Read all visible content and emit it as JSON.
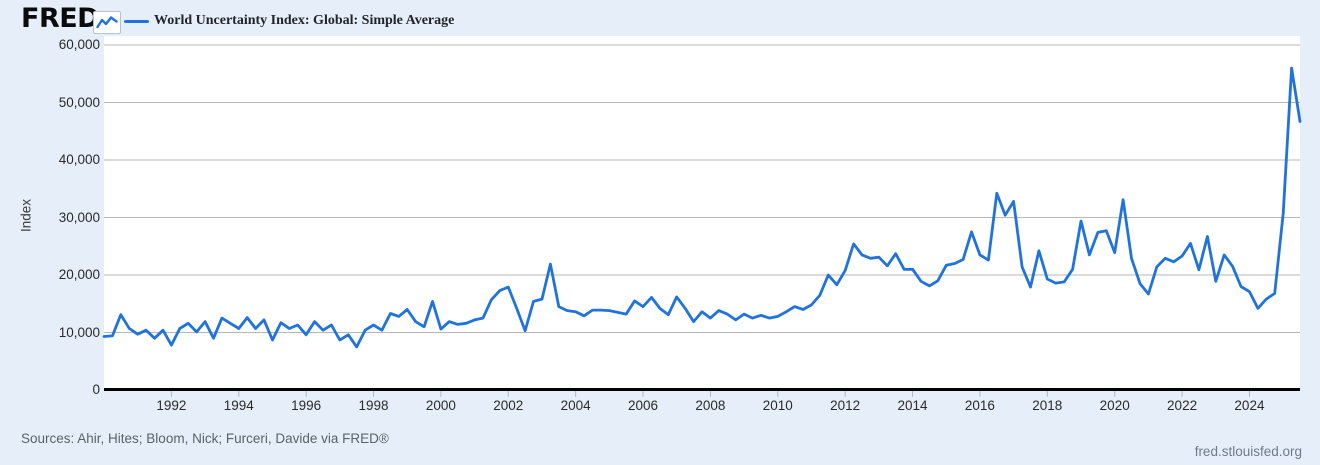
{
  "header": {
    "logo_text": "FRED",
    "logo_registered": "®",
    "legend_label": "World Uncertainty Index: Global: Simple Average"
  },
  "footer": {
    "sources": "Sources: Ahir, Hites; Bloom, Nick; Furceri, Davide via FRED®",
    "site_link": "fred.stlouisfed.org"
  },
  "colors": {
    "page_background": "#e6eff9",
    "plot_background": "#ffffff",
    "series_line": "#2073dc",
    "gridline": "#b7b7b7",
    "axis_line": "#000000",
    "tick_mark": "#aeb8c2",
    "tick_label": "#2a2a2a",
    "source_text": "#5a6268",
    "link_text": "#6e7a87"
  },
  "chart_data": {
    "type": "line",
    "title": "World Uncertainty Index: Global: Simple Average",
    "xlabel": "",
    "ylabel": "Index",
    "ylim": [
      0,
      60000
    ],
    "x_range": [
      1990.0,
      2025.5
    ],
    "grid": "horizontal-only",
    "legend_position": "top-left",
    "frequency": "quarterly",
    "x_start": 1990.0,
    "x_step": 0.25,
    "y_tick_values": [
      0,
      10000,
      20000,
      30000,
      40000,
      50000,
      60000
    ],
    "y_tick_labels": [
      "0",
      "10,000",
      "20,000",
      "30,000",
      "40,000",
      "50,000",
      "60,000"
    ],
    "x_tick_years": [
      1992,
      1994,
      1996,
      1998,
      2000,
      2002,
      2004,
      2006,
      2008,
      2010,
      2012,
      2014,
      2016,
      2018,
      2020,
      2022,
      2024
    ],
    "x_tick_labels": [
      "1992",
      "1994",
      "1996",
      "1998",
      "2000",
      "2002",
      "2004",
      "2006",
      "2008",
      "2010",
      "2012",
      "2014",
      "2016",
      "2018",
      "2020",
      "2022",
      "2024"
    ],
    "values": [
      9300,
      9400,
      13100,
      10700,
      9700,
      10400,
      9000,
      10400,
      7800,
      10700,
      11600,
      10100,
      11900,
      9000,
      12500,
      11600,
      10700,
      12600,
      10700,
      12200,
      8700,
      11700,
      10700,
      11300,
      9600,
      11900,
      10400,
      11300,
      8700,
      9600,
      7500,
      10400,
      11300,
      10400,
      13300,
      12800,
      14000,
      11900,
      11000,
      15400,
      10600,
      11900,
      11400,
      11600,
      12200,
      12500,
      15700,
      17300,
      17900,
      14200,
      10300,
      15400,
      15800,
      21900,
      14500,
      13800,
      13600,
      12900,
      13900,
      13900,
      13800,
      13500,
      13200,
      15500,
      14500,
      16100,
      14200,
      13100,
      16200,
      14200,
      11900,
      13600,
      12500,
      13800,
      13200,
      12200,
      13200,
      12500,
      13000,
      12500,
      12800,
      13600,
      14500,
      14000,
      14800,
      16500,
      20000,
      18300,
      20800,
      25400,
      23500,
      22900,
      23100,
      21600,
      23700,
      21000,
      21000,
      18900,
      18100,
      19000,
      21700,
      22000,
      22700,
      27500,
      23500,
      22600,
      34200,
      30400,
      32800,
      21400,
      17900,
      24200,
      19300,
      18600,
      18800,
      21000,
      29400,
      23500,
      27400,
      27700,
      23900,
      33100,
      22900,
      18500,
      16700,
      21400,
      22900,
      22300,
      23300,
      25500,
      20900,
      26700,
      18900,
      23500,
      21500,
      18000,
      17100,
      14200,
      15800,
      16800,
      30700,
      56000,
      46700
    ]
  }
}
